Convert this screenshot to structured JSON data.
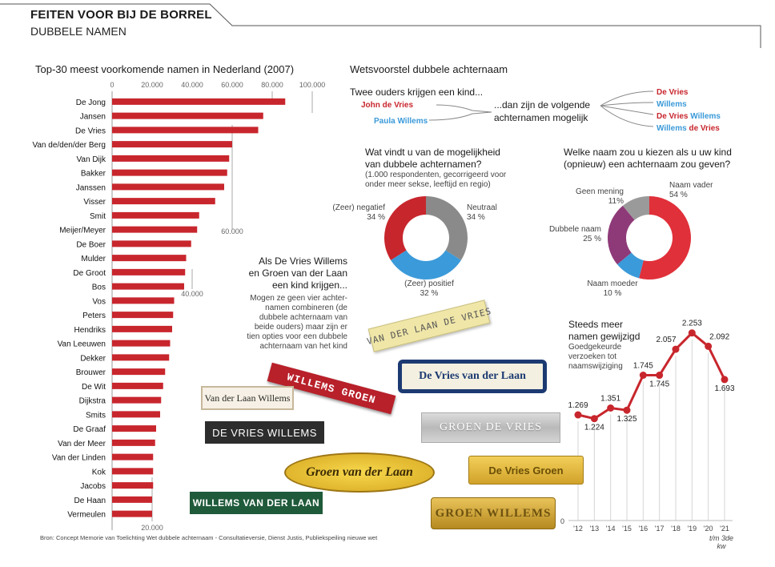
{
  "header": {
    "title": "FEITEN VOOR BIJ DE BORREL",
    "subtitle": "DUBBELE NAMEN"
  },
  "source": "Bron: Concept Memorie van Toelichting Wet dubbele achternaam - Consultatieversie, Dienst Justis, Publiekspeiling nieuwe wet",
  "colors": {
    "red": "#c8262d",
    "blue": "#3b9ad9",
    "gray": "#8a8a8a",
    "purple": "#8e3a78",
    "bar": "#c8262d"
  },
  "chart_data": [
    {
      "type": "bar",
      "title": "Top-30 meest voorkomende namen in Nederland (2007)",
      "xlim": [
        0,
        100000
      ],
      "ticks": [
        "0",
        "20.000",
        "40.000",
        "60.000",
        "80.000",
        "100.000"
      ],
      "extra_tick_labels": [
        "60.000",
        "40.000",
        "20.000"
      ],
      "categories": [
        "De Jong",
        "Jansen",
        "De Vries",
        "Van de/den/der Berg",
        "Van Dijk",
        "Bakker",
        "Janssen",
        "Visser",
        "Smit",
        "Meijer/Meyer",
        "De Boer",
        "Mulder",
        "De Groot",
        "Bos",
        "Vos",
        "Peters",
        "Hendriks",
        "Van Leeuwen",
        "Dekker",
        "Brouwer",
        "De Wit",
        "Dijkstra",
        "Smits",
        "De Graaf",
        "Van der Meer",
        "Van der Linden",
        "Kok",
        "Jacobs",
        "De Haan",
        "Vermeulen"
      ],
      "values": [
        86500,
        75500,
        73000,
        60000,
        58500,
        57500,
        56000,
        51500,
        43500,
        42500,
        39500,
        37000,
        36500,
        36000,
        31000,
        30500,
        30000,
        29000,
        28500,
        26500,
        25500,
        24500,
        24000,
        22000,
        21500,
        20500,
        20500,
        20500,
        20000,
        20000
      ]
    },
    {
      "type": "pie",
      "title": "Wat vindt u van de mogelijkheid van dubbele achternamen?",
      "note": "(1.000 respondenten, gecorrigeerd voor onder meer sekse, leeftijd en regio)",
      "slices": [
        {
          "name": "Neutraal",
          "value": 34,
          "label": "34 %",
          "color": "#8a8a8a"
        },
        {
          "name": "(Zeer) positief",
          "value": 32,
          "label": "32 %",
          "color": "#3b9ad9"
        },
        {
          "name": "(Zeer) negatief",
          "value": 34,
          "label": "34 %",
          "color": "#c8262d"
        }
      ]
    },
    {
      "type": "pie",
      "title": "Welke naam zou u kiezen als u uw kind (opnieuw) een achternaam zou geven?",
      "slices": [
        {
          "name": "Naam vader",
          "value": 54,
          "label": "54 %",
          "color": "#e0303a"
        },
        {
          "name": "Naam moeder",
          "value": 10,
          "label": "10 %",
          "color": "#3b9ad9"
        },
        {
          "name": "Dubbele naam",
          "value": 25,
          "label": "25 %",
          "color": "#8e3a78"
        },
        {
          "name": "Geen mening",
          "value": 11,
          "label": "11%",
          "color": "#9a9a9a"
        }
      ]
    },
    {
      "type": "line",
      "title": "Steeds meer namen gewijzigd",
      "note": "Goedgekeurde verzoeken tot naamswijziging",
      "x": [
        "'12",
        "'13",
        "'14",
        "'15",
        "'16",
        "'17",
        "'18",
        "'19",
        "'20",
        "'21"
      ],
      "x_note": "t/m 3de kw",
      "values": [
        1269,
        1224,
        1351,
        1325,
        1745,
        1745,
        2057,
        2253,
        2092,
        1693
      ],
      "labels": [
        "1.269",
        "1.224",
        "1.351",
        "1.325",
        "1.745",
        "1.745",
        "2.057",
        "2.253",
        "2.092",
        "1.693"
      ],
      "y_zero_label": "0",
      "ylim": [
        0,
        2500
      ]
    }
  ],
  "proposal": {
    "title": "Wetsvoorstel dubbele achternaam",
    "intro": "Twee ouders krijgen een kind...",
    "parent1": "John de Vries",
    "parent2": "Paula Willems",
    "result": "...dan zijn de volgende achternamen mogelijk",
    "options": [
      {
        "a": "De Vries",
        "b": ""
      },
      {
        "a": "Willems",
        "b": ""
      },
      {
        "a": "De Vries",
        "b": " Willems"
      },
      {
        "a": "Willems",
        "b": " de Vries"
      }
    ]
  },
  "example": {
    "heading": "Als De Vries Willems en Groen van der Laan een kind krijgen...",
    "body": "Mogen ze geen vier achter-namen combineren (de dubbele achternaam van beide ouders) maar zijn er tien opties voor een dubbele achternaam van het kind"
  },
  "plates": [
    "VAN DER LAAN DE VRIES",
    "WILLEMS GROEN",
    "De Vries van der Laan",
    "Van der Laan Willems",
    "GROEN DE VRIES",
    "DE VRIES WILLEMS",
    "Groen van der Laan",
    "De Vries Groen",
    "WILLEMS VAN DER LAAN",
    "GROEN WILLEMS"
  ]
}
